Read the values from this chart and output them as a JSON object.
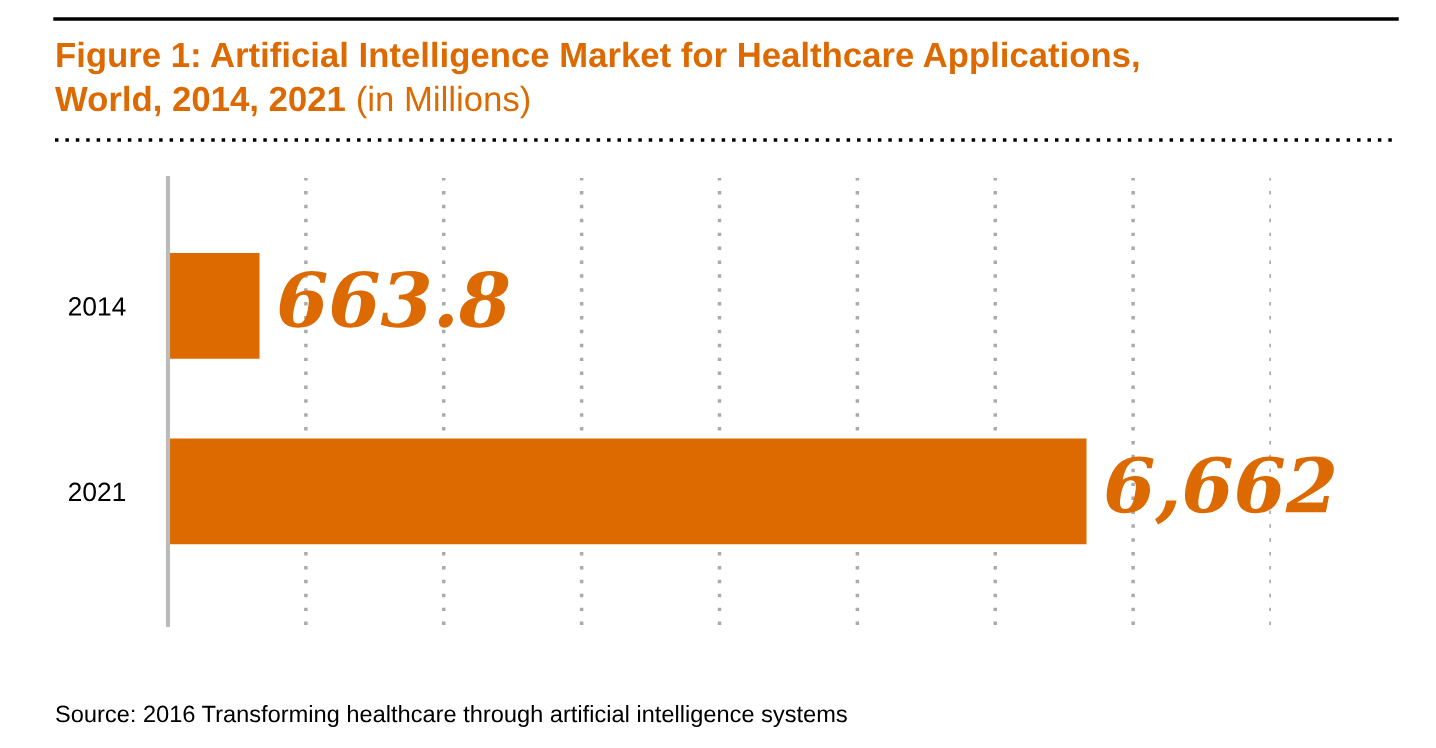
{
  "chart_data": {
    "type": "bar",
    "orientation": "horizontal",
    "title": "Figure 1: Artificial Intelligence Market for Healthcare Applications,\nWorld, 2014, 2021",
    "subtitle": "(in Millions)",
    "categories": [
      "2014",
      "2021"
    ],
    "values": [
      663.8,
      6662
    ],
    "value_labels": [
      "663.8",
      "6,662"
    ],
    "color": "#dc6a00",
    "xlim": [
      0,
      8000
    ],
    "xticks": [
      {
        "value": 1000,
        "label": null
      },
      {
        "value": 2000,
        "label": null
      },
      {
        "value": 3000,
        "label": null
      },
      {
        "value": 4000,
        "label": null
      },
      {
        "value": 5000,
        "label": null
      },
      {
        "value": 6000,
        "label": null
      },
      {
        "value": 7000,
        "label": null
      },
      {
        "value": 8000,
        "label": null
      }
    ],
    "tick_labels": "y",
    "grid": "x",
    "legend": false,
    "annotations": [
      "Source: 2016 Transforming healthcare through artificial intelligence systems"
    ]
  }
}
